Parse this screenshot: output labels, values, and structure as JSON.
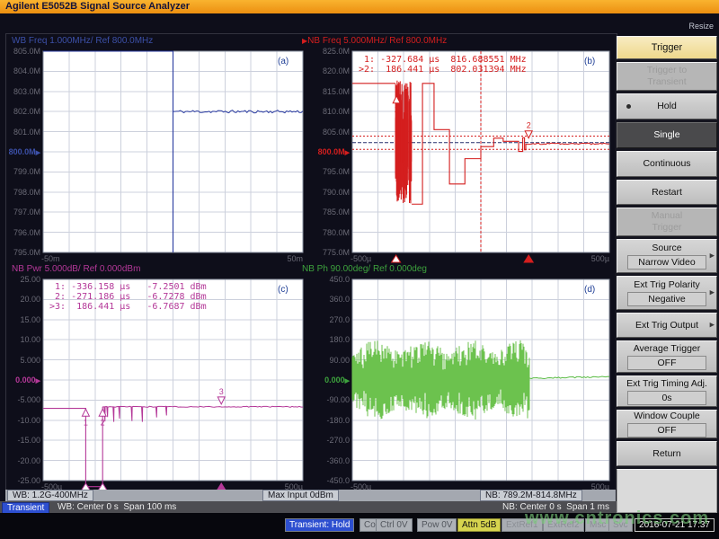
{
  "window": {
    "title": "Agilent E5052B Signal Source Analyzer",
    "resize_label": "Resize"
  },
  "plots": {
    "ref_arrow": "▶",
    "a": {
      "title": "WB Freq 1.000MHz/ Ref 800.0MHz",
      "letter": "(a)"
    },
    "b": {
      "title": "NB Freq 5.000MHz/ Ref 800.0MHz",
      "title_prefix": "▶",
      "letter": "(b)"
    },
    "c": {
      "title": "NB Pwr 5.000dB/ Ref 0.000dBm",
      "letter": "(c)"
    },
    "d": {
      "title": "NB Ph 90.00deg/ Ref 0.000deg",
      "letter": "(d)"
    }
  },
  "chart_data": {
    "type": "line",
    "panels": {
      "a": {
        "x_range": [
          -50,
          50
        ],
        "x_unit": "ms",
        "y_range": [
          795,
          805
        ],
        "y_unit": "MHz",
        "y_ticks": [
          "805.0M",
          "804.0M",
          "803.0M",
          "802.0M",
          "801.0M",
          "800.0M",
          "799.0M",
          "798.0M",
          "797.0M",
          "796.0M",
          "795.0M"
        ],
        "x_ticks": [
          "-50m",
          "50m"
        ],
        "ref_index": 5,
        "color": "#2a3ba0",
        "points": [
          [
            -50,
            805
          ],
          [
            0,
            805
          ],
          [
            0,
            795
          ],
          [
            0,
            802
          ]
        ],
        "noise_tail": {
          "x0": 0,
          "x1": 50,
          "y0": 802,
          "y1": 802,
          "amp": 0.07
        }
      },
      "b": {
        "x_range": [
          -500,
          500
        ],
        "x_unit": "us",
        "y_range": [
          775,
          825
        ],
        "y_unit": "MHz",
        "y_ticks": [
          "825.0M",
          "820.0M",
          "815.0M",
          "810.0M",
          "805.0M",
          "800.0M",
          "795.0M",
          "790.0M",
          "785.0M",
          "780.0M",
          "775.0M"
        ],
        "x_ticks": [
          "-500µ",
          "500µ"
        ],
        "ref_index": 5,
        "color": "#d41e1e",
        "points": [
          [
            -500,
            817
          ],
          [
            -332,
            817
          ]
        ],
        "points2": [
          [
            -269,
            787
          ],
          [
            -227,
            787
          ],
          [
            -227,
            817
          ],
          [
            -182,
            817
          ],
          [
            -182,
            805.5
          ],
          [
            -122,
            805.5
          ],
          [
            -122,
            792
          ],
          [
            -62,
            792
          ],
          [
            -62,
            798.3
          ],
          [
            0,
            798.3
          ],
          [
            0,
            801.3
          ],
          [
            50,
            801.3
          ],
          [
            50,
            803.4
          ],
          [
            87,
            803.4
          ],
          [
            87,
            802.6
          ],
          [
            147,
            802.6
          ],
          [
            147,
            800.1
          ],
          [
            163,
            800.1
          ],
          [
            163,
            803.5
          ],
          [
            170,
            803.5
          ],
          [
            170,
            800.5
          ],
          [
            175,
            800.5
          ],
          [
            175,
            802
          ]
        ],
        "noise_band": {
          "x0": -332,
          "x1": -269,
          "ymin": 787,
          "ymax": 818
        },
        "noise_tail": {
          "x0": 175,
          "x1": 500,
          "y0": 802,
          "y1": 802,
          "amp": 0.2
        },
        "vline": 0,
        "href_lines": [
          {
            "y": 803.9,
            "dash": "2,2",
            "color": "#d41e1e"
          },
          {
            "y": 802.3,
            "dash": "4,2",
            "color": "#252e6b"
          },
          {
            "y": 800.6,
            "dash": "2,2",
            "color": "#d41e1e"
          }
        ],
        "markers": [
          {
            "label": "1",
            "x": -328,
            "y": 813,
            "dir": "up"
          },
          {
            "label": "2",
            "x": 186,
            "y": 804.3,
            "dir": "down"
          }
        ],
        "axis_markers": [
          {
            "x": -330,
            "filled": false
          },
          {
            "x": 186,
            "filled": true
          }
        ],
        "readout": [
          " 1: -327.684 µs  816.688551 MHz",
          ">2:  186.441 µs  802.031394 MHz"
        ]
      },
      "c": {
        "x_range": [
          -500,
          500
        ],
        "x_unit": "us",
        "y_range": [
          -25,
          25
        ],
        "y_unit": "dBm",
        "y_ticks": [
          "25.00",
          "20.00",
          "15.00",
          "10.00",
          "5.000",
          "0.000",
          "-5.000",
          "-10.00",
          "-15.00",
          "-20.00",
          "-25.00"
        ],
        "x_ticks": [
          "-500µ",
          "500µ"
        ],
        "ref_index": 5,
        "color": "#b43898",
        "points": [
          [
            -500,
            -7.05
          ],
          [
            -336,
            -7.05
          ],
          [
            -336,
            -26.5
          ],
          [
            -271,
            -26.5
          ],
          [
            -271,
            -6.65
          ]
        ],
        "noise_tail": {
          "x0": -271,
          "x1": 500,
          "y0": -6.65,
          "y1": -6.65,
          "amp": 0.12
        },
        "spikes": {
          "base": -6.65,
          "dips": [
            [
              -262,
              -10.3
            ],
            [
              -252,
              -9.2
            ],
            [
              -228,
              -10.4
            ],
            [
              -206,
              -9.6
            ],
            [
              -158,
              -10.2
            ],
            [
              -118,
              -10.4
            ],
            [
              -63,
              -9.3
            ],
            [
              -25,
              -8.8
            ]
          ]
        },
        "markers": [
          {
            "label": "1",
            "x": -336,
            "y": -8.1,
            "dir": "up"
          },
          {
            "label": "2",
            "x": -271,
            "y": -8.1,
            "dir": "up"
          },
          {
            "label": "3",
            "x": 186,
            "y": -5.1,
            "dir": "down"
          }
        ],
        "axis_markers": [
          {
            "x": -336,
            "filled": false
          },
          {
            "x": -271,
            "filled": false
          },
          {
            "x": 186,
            "filled": true
          }
        ],
        "readout": [
          " 1: -336.158 µs   -7.2501 dBm",
          " 2: -271.186 µs   -6.7278 dBm",
          ">3:  186.441 µs   -6.7687 dBm"
        ]
      },
      "d": {
        "x_range": [
          -500,
          500
        ],
        "x_unit": "us",
        "y_range": [
          -450,
          450
        ],
        "y_unit": "deg",
        "y_ticks": [
          "450.0",
          "360.0",
          "270.0",
          "180.0",
          "90.00",
          "0.000",
          "-90.00",
          "-180.0",
          "-270.0",
          "-360.0",
          "-450.0"
        ],
        "x_ticks": [
          "-500µ",
          "500µ"
        ],
        "ref_index": 5,
        "color": "#58bb42",
        "phase_band": {
          "x0": -500,
          "x1": 190,
          "min_amp": 40,
          "max_amp": 178
        },
        "noise_tail": {
          "x0": 190,
          "x1": 500,
          "y0": 7,
          "y1": 15,
          "amp": 3
        }
      }
    }
  },
  "sidebar": {
    "buttons": [
      {
        "label": "Trigger",
        "style": "title"
      },
      {
        "label": "Trigger to\nTransient",
        "style": "disabled"
      },
      {
        "label": "Hold",
        "style": "normal",
        "bullet": true
      },
      {
        "label": "Single",
        "style": "active"
      },
      {
        "label": "Continuous",
        "style": "normal"
      },
      {
        "label": "Restart",
        "style": "normal"
      },
      {
        "label": "Manual\nTrigger",
        "style": "disabled"
      },
      {
        "label": "Source",
        "sub": "Narrow Video",
        "style": "normal",
        "arrow": true
      },
      {
        "label": "Ext Trig Polarity",
        "sub": "Negative",
        "style": "normal",
        "arrow": true
      },
      {
        "label": "Ext Trig Output",
        "style": "normal",
        "arrow": true
      },
      {
        "label": "Average Trigger",
        "sub": "OFF",
        "style": "normal"
      },
      {
        "label": "Ext Trig Timing Adj.",
        "sub": "0s",
        "style": "normal"
      },
      {
        "label": "Window Couple",
        "sub": "OFF",
        "style": "normal"
      },
      {
        "label": "Return",
        "style": "normal"
      }
    ],
    "arrow_glyph": "▶"
  },
  "status": {
    "wb_range": "WB: 1.2G-400MHz",
    "max_input": "Max Input 0dBm",
    "nb_range": "NB: 789.2M-814.8MHz",
    "mode_chip": "Transient",
    "wb_sweep": "WB: Center 0 s  Span 100 ms",
    "nb_sweep": "NB: Center 0 s  Span 1 ms",
    "hold_chip": "Transient: Hold",
    "chips": [
      {
        "label": "Cor",
        "style": "dim"
      },
      {
        "label": "Ctrl 0V",
        "style": "dim"
      },
      {
        "label": "Pow 0V",
        "style": "dim"
      },
      {
        "label": "Attn 5dB",
        "style": "attn"
      },
      {
        "label": "ExtRef1",
        "style": "faint"
      },
      {
        "label": "ExtRef2",
        "style": "faint"
      },
      {
        "label": "Msc",
        "style": "faint"
      },
      {
        "label": "Svc",
        "style": "faint"
      }
    ],
    "datetime": "2016-07-21 17:37"
  },
  "watermark": "www.cntronics.com",
  "colors": {
    "wb_freq": "#3c50a8",
    "nb_freq": "#d41e1e",
    "nb_pwr": "#b43898",
    "nb_ph": "#3da23d",
    "titlebar": "#f3a01e",
    "accent_blue_chip": "#2d4fd0",
    "attn_yellow": "#d6d44e"
  }
}
